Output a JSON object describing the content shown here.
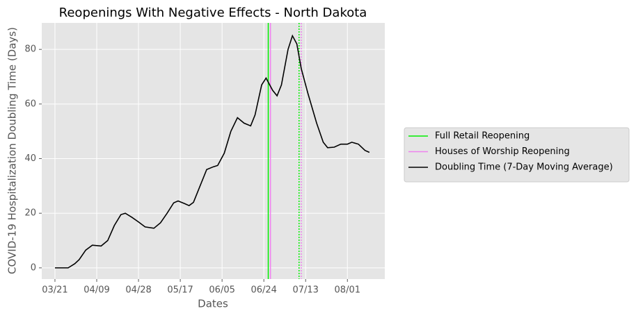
{
  "chart_data": {
    "type": "line",
    "title": "Reopenings With Negative Effects - North Dakota",
    "xlabel": "Dates",
    "ylabel": "COVID-19 Hospitalization Doubling Time (Days)",
    "x": [
      "03/21",
      "03/27",
      "03/30",
      "04/01",
      "04/04",
      "04/07",
      "04/11",
      "04/14",
      "04/17",
      "04/20",
      "04/22",
      "04/25",
      "04/28",
      "05/01",
      "05/05",
      "05/08",
      "05/11",
      "05/14",
      "05/16",
      "05/19",
      "05/21",
      "05/23",
      "05/26",
      "05/29",
      "06/01",
      "06/03",
      "06/06",
      "06/09",
      "06/12",
      "06/15",
      "06/18",
      "06/20",
      "06/23",
      "06/25",
      "06/28",
      "06/30",
      "07/02",
      "07/05",
      "07/07",
      "07/09",
      "07/11",
      "07/14",
      "07/18",
      "07/21",
      "07/23",
      "07/26",
      "07/29",
      "08/01",
      "08/03",
      "08/06",
      "08/09",
      "08/11"
    ],
    "series": [
      {
        "name": "Doubling Time (7-Day Moving Average)",
        "color": "#000000",
        "values": [
          0,
          0,
          1.5,
          3,
          6.5,
          8.3,
          8,
          10,
          15.5,
          19.5,
          20,
          18.5,
          16.8,
          15,
          14.5,
          16.5,
          20,
          23.8,
          24.5,
          23.5,
          22.8,
          24,
          30,
          36,
          37,
          37.5,
          42,
          50,
          55,
          53,
          52,
          56,
          67,
          69.5,
          65,
          63,
          67,
          80,
          85,
          82,
          73,
          64,
          53,
          46,
          44,
          44.2,
          45.3,
          45.3,
          46,
          45.3,
          43,
          42.3
        ]
      }
    ],
    "vlines": [
      {
        "name": "Full Retail Reopening",
        "color": "#00ee00",
        "x": "06/26",
        "style": "solid"
      },
      {
        "name": "Houses of Worship Reopening",
        "color": "#ee82ee",
        "x": "06/27",
        "style": "solid"
      },
      {
        "color": "#00ee00",
        "x": "07/10",
        "style": "dotted"
      },
      {
        "color": "#ee82ee",
        "x": "07/11",
        "style": "dotted"
      }
    ],
    "xlim": [
      "03/15",
      "08/18"
    ],
    "xticks": [
      "03/21",
      "04/09",
      "04/28",
      "05/17",
      "06/05",
      "06/24",
      "07/13",
      "08/01"
    ],
    "ylim": [
      -4.1,
      89.7
    ],
    "yticks": [
      0,
      20,
      40,
      60,
      80
    ],
    "grid": true,
    "legend": "outside-right"
  }
}
